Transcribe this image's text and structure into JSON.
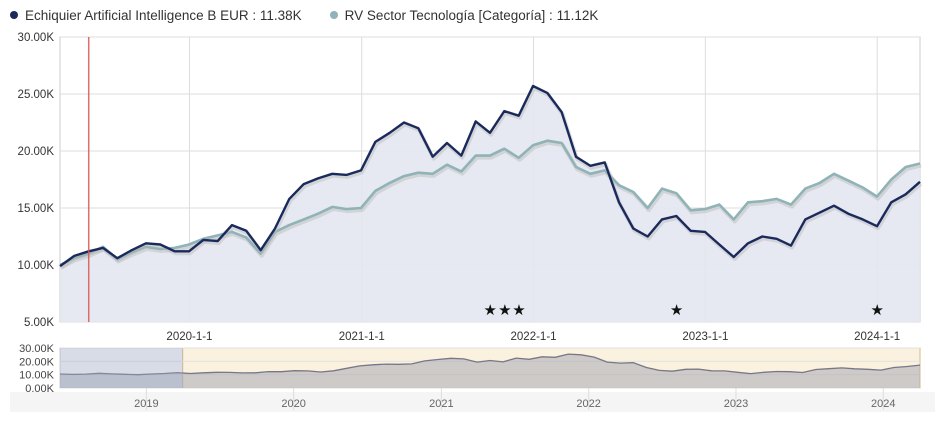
{
  "chart_data": {
    "type": "line",
    "series": [
      {
        "name": "Echiquier Artificial Intelligence B EUR",
        "value_label": "11.38K",
        "color": "#1b2a5c",
        "values": [
          9.9,
          10.8,
          11.2,
          11.5,
          10.6,
          11.3,
          11.9,
          11.8,
          11.2,
          11.2,
          12.2,
          12.1,
          13.5,
          13.0,
          11.3,
          13.2,
          15.8,
          17.1,
          17.6,
          18.0,
          17.9,
          18.3,
          20.8,
          21.6,
          22.5,
          22.0,
          19.5,
          20.7,
          19.6,
          22.6,
          21.6,
          23.5,
          23.1,
          25.7,
          25.1,
          23.4,
          19.5,
          18.7,
          19.0,
          15.5,
          13.2,
          12.5,
          14.0,
          14.3,
          13.0,
          12.9,
          11.8,
          10.7,
          11.9,
          12.5,
          12.3,
          11.7,
          14.0,
          14.6,
          15.2,
          14.5,
          14.0,
          13.4,
          15.5,
          16.2,
          17.3
        ]
      },
      {
        "name": "RV Sector Tecnología [Categoría]",
        "value_label": "11.12K",
        "color": "#8fb3b6",
        "values": [
          10.0,
          10.6,
          11.0,
          11.6,
          10.5,
          11.1,
          11.6,
          11.4,
          11.5,
          11.8,
          12.3,
          12.6,
          12.9,
          12.4,
          11.0,
          12.9,
          13.5,
          14.0,
          14.5,
          15.1,
          14.9,
          15.0,
          16.5,
          17.2,
          17.8,
          18.1,
          18.0,
          18.8,
          18.2,
          19.6,
          19.6,
          20.2,
          19.4,
          20.5,
          20.9,
          20.7,
          18.6,
          18.0,
          18.3,
          17.0,
          16.4,
          15.0,
          16.7,
          16.3,
          14.8,
          14.9,
          15.3,
          14.0,
          15.5,
          15.6,
          15.8,
          15.3,
          16.7,
          17.2,
          18.0,
          17.4,
          16.8,
          16.0,
          17.5,
          18.6,
          18.9
        ]
      }
    ],
    "x_start": "2019-04-01",
    "x_end": "2024-04-01",
    "x_ticks": [
      "2020-1-1",
      "2021-1-1",
      "2022-1-1",
      "2023-1-1",
      "2024-1-1"
    ],
    "y_ticks": [
      "5.00K",
      "10.00K",
      "15.00K",
      "20.00K",
      "25.00K",
      "30.00K"
    ],
    "ylim": [
      5,
      30
    ],
    "star_dates": [
      "2021-10-01",
      "2021-11-01",
      "2021-12-01",
      "2022-11-01",
      "2024-01-01"
    ],
    "star_symbol": "★",
    "marker_date": "2019-06-01",
    "navigator": {
      "y_ticks": [
        "0.00K",
        "10.00K",
        "20.00K",
        "30.00K"
      ],
      "ylim": [
        0,
        30
      ],
      "years": [
        "2019",
        "2020",
        "2021",
        "2022",
        "2023",
        "2024"
      ],
      "x_start": "2018-06-01",
      "x_end": "2024-04-01",
      "selection_start": "2019-04-01",
      "values": [
        10.5,
        10.2,
        10.4,
        11.0,
        10.6,
        10.3,
        10.0,
        10.5,
        10.9,
        11.5,
        10.9,
        11.4,
        11.8,
        11.7,
        11.3,
        11.4,
        12.3,
        12.2,
        13.0,
        12.8,
        12.0,
        12.9,
        14.8,
        16.6,
        17.4,
        17.9,
        17.8,
        18.1,
        20.3,
        21.4,
        22.3,
        21.8,
        19.4,
        20.6,
        19.6,
        22.4,
        21.5,
        23.4,
        23.0,
        25.4,
        24.9,
        23.2,
        19.4,
        18.7,
        19.0,
        15.4,
        13.2,
        12.6,
        14.0,
        14.2,
        12.9,
        12.8,
        11.8,
        10.8,
        11.8,
        12.4,
        12.2,
        11.6,
        13.9,
        14.5,
        15.1,
        14.4,
        14.0,
        13.4,
        15.4,
        16.1,
        17.2
      ]
    }
  }
}
